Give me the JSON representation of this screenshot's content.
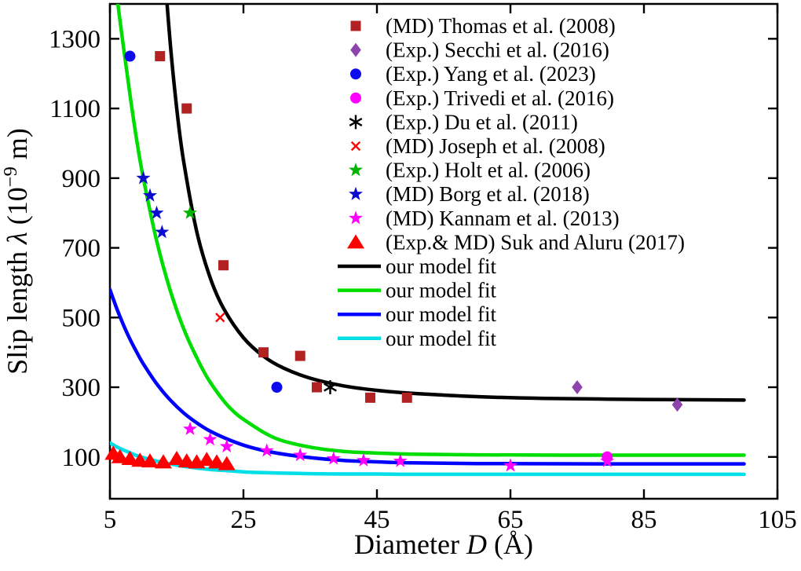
{
  "chart_data": {
    "type": "scatter",
    "title": "",
    "xlabel": {
      "pre": "Diameter ",
      "sym": "D",
      "post": " (Å)"
    },
    "ylabel": {
      "pre": "Slip length ",
      "sym": "λ",
      "mid": " (10",
      "sup": "−9",
      "post": " m)"
    },
    "xlim": [
      5,
      105
    ],
    "ylim": [
      -20,
      1400
    ],
    "xticks": [
      5,
      25,
      45,
      65,
      85,
      105
    ],
    "yticks": [
      100,
      300,
      500,
      700,
      900,
      1100,
      1300
    ],
    "grid": false,
    "legend_position": "upper-center-right-inside",
    "series": [
      {
        "name": "thomas",
        "label": "(MD) Thomas et al. (2008)",
        "marker": "square",
        "color": "#b22222",
        "points": [
          [
            12.5,
            1250
          ],
          [
            16.5,
            1100
          ],
          [
            22,
            650
          ],
          [
            28,
            400
          ],
          [
            33.5,
            390
          ],
          [
            36,
            300
          ],
          [
            44,
            270
          ],
          [
            49.5,
            270
          ]
        ]
      },
      {
        "name": "secchi",
        "label": "(Exp.) Secchi et al. (2016)",
        "marker": "diamond",
        "color": "#8e44ad",
        "points": [
          [
            75,
            300
          ],
          [
            90,
            250
          ]
        ]
      },
      {
        "name": "yang",
        "label": "(Exp.) Yang et al. (2023)",
        "marker": "circle",
        "color": "#0b0bee",
        "points": [
          [
            8,
            1250
          ],
          [
            30,
            300
          ]
        ]
      },
      {
        "name": "trivedi",
        "label": "(Exp.) Trivedi et al. (2016)",
        "marker": "circle",
        "color": "#ff00ff",
        "points": [
          [
            79.5,
            100
          ]
        ]
      },
      {
        "name": "du",
        "label": "(Exp.) Du et al. (2011)",
        "marker": "asterisk",
        "color": "#000000",
        "points": [
          [
            38,
            300
          ]
        ]
      },
      {
        "name": "joseph",
        "label": "(MD) Joseph et al. (2008)",
        "marker": "cross",
        "color": "#ff0000",
        "points": [
          [
            21.5,
            500
          ]
        ]
      },
      {
        "name": "holt",
        "label": "(Exp.) Holt et al. (2006)",
        "marker": "star",
        "color": "#00b400",
        "points": [
          [
            17,
            800
          ]
        ]
      },
      {
        "name": "borg",
        "label": "(MD) Borg et al. (2018)",
        "marker": "star",
        "color": "#0b0bd0",
        "points": [
          [
            10,
            900
          ],
          [
            11,
            850
          ],
          [
            12,
            800
          ],
          [
            12.8,
            745
          ]
        ]
      },
      {
        "name": "kannam",
        "label": "(MD) Kannam et al. (2013)",
        "marker": "star",
        "color": "#ff00ff",
        "points": [
          [
            17,
            180
          ],
          [
            20,
            150
          ],
          [
            22.5,
            130
          ],
          [
            28.5,
            118
          ],
          [
            33.5,
            105
          ],
          [
            38.5,
            95
          ],
          [
            43,
            90
          ],
          [
            48.5,
            88
          ],
          [
            65,
            75
          ],
          [
            79.5,
            88
          ]
        ]
      },
      {
        "name": "suk",
        "label": "(Exp.& MD) Suk and Aluru (2017)",
        "marker": "triangle",
        "color": "#ff0000",
        "points": [
          [
            5.5,
            110
          ],
          [
            6.5,
            100
          ],
          [
            8,
            95
          ],
          [
            9.5,
            90
          ],
          [
            11,
            88
          ],
          [
            13,
            85
          ],
          [
            15,
            95
          ],
          [
            16.5,
            88
          ],
          [
            18,
            85
          ],
          [
            19.5,
            92
          ],
          [
            21,
            85
          ],
          [
            22.5,
            80
          ]
        ]
      }
    ],
    "fits": [
      {
        "name": "fit-black",
        "label": "our model fit",
        "color": "#000000",
        "points": [
          [
            11,
            2394
          ],
          [
            12,
            1904
          ],
          [
            13,
            1553
          ],
          [
            14,
            1295
          ],
          [
            15,
            1101
          ],
          [
            16,
            953
          ],
          [
            18,
            747
          ],
          [
            20,
            615
          ],
          [
            22,
            527
          ],
          [
            25,
            442
          ],
          [
            28,
            389
          ],
          [
            31,
            355
          ],
          [
            35,
            326
          ],
          [
            40,
            304
          ],
          [
            45,
            291
          ],
          [
            50,
            283
          ],
          [
            60,
            273
          ],
          [
            70,
            268
          ],
          [
            85,
            265
          ],
          [
            100,
            263
          ]
        ]
      },
      {
        "name": "fit-green",
        "label": "our model fit",
        "color": "#00dd00",
        "points": [
          [
            5,
            1600
          ],
          [
            6,
            1430
          ],
          [
            7,
            1280
          ],
          [
            8,
            1140
          ],
          [
            9,
            1010
          ],
          [
            10,
            900
          ],
          [
            12,
            720
          ],
          [
            14,
            580
          ],
          [
            16,
            470
          ],
          [
            18,
            385
          ],
          [
            20,
            315
          ],
          [
            23,
            240
          ],
          [
            26,
            195
          ],
          [
            30,
            152
          ],
          [
            35,
            128
          ],
          [
            40,
            116
          ],
          [
            45,
            111
          ],
          [
            50,
            108
          ],
          [
            60,
            106
          ],
          [
            80,
            105
          ],
          [
            100,
            105
          ]
        ]
      },
      {
        "name": "fit-blue",
        "label": "our model fit",
        "color": "#0000ff",
        "points": [
          [
            5,
            580
          ],
          [
            6,
            527
          ],
          [
            7,
            480
          ],
          [
            8,
            438
          ],
          [
            9,
            401
          ],
          [
            10,
            367
          ],
          [
            12,
            310
          ],
          [
            14,
            264
          ],
          [
            16,
            227
          ],
          [
            18,
            198
          ],
          [
            20,
            174
          ],
          [
            23,
            148
          ],
          [
            26,
            128
          ],
          [
            30,
            111
          ],
          [
            35,
            98
          ],
          [
            40,
            90
          ],
          [
            45,
            86
          ],
          [
            50,
            83
          ],
          [
            60,
            81
          ],
          [
            80,
            80
          ],
          [
            100,
            80
          ]
        ]
      },
      {
        "name": "fit-cyan",
        "label": "our model fit",
        "color": "#00dfe8",
        "points": [
          [
            5,
            140
          ],
          [
            6,
            129
          ],
          [
            7,
            120
          ],
          [
            8,
            112
          ],
          [
            9,
            104
          ],
          [
            10,
            98
          ],
          [
            12,
            88
          ],
          [
            14,
            80
          ],
          [
            16,
            73
          ],
          [
            18,
            68
          ],
          [
            20,
            64
          ],
          [
            23,
            60
          ],
          [
            26,
            56
          ],
          [
            30,
            54
          ],
          [
            35,
            52
          ],
          [
            40,
            51
          ],
          [
            45,
            51
          ],
          [
            50,
            50
          ],
          [
            60,
            50
          ],
          [
            80,
            50
          ],
          [
            100,
            50
          ]
        ]
      }
    ],
    "style": {
      "frame_color": "#000000",
      "background": "#ffffff",
      "curve_width": 4.5,
      "tick_font_px": 33,
      "label_font_px": 36,
      "legend_font_px": 27
    }
  }
}
